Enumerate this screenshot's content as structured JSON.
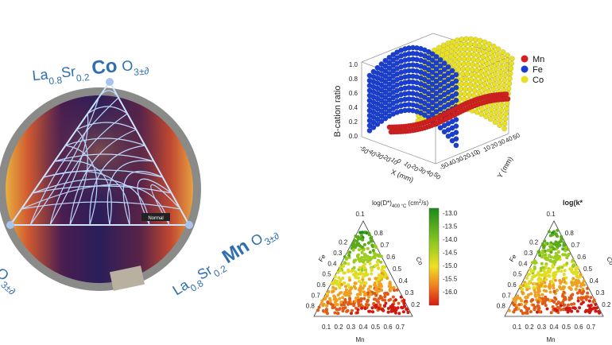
{
  "wafer": {
    "top_label": [
      "La",
      "0.8",
      "Sr",
      "0.2",
      "Co",
      "O",
      "3±∂"
    ],
    "right_label": [
      "La",
      "0.8",
      "Sr",
      "0.2",
      "Mn",
      "O",
      "3±∂"
    ],
    "left_label": [
      "O",
      "3±∂"
    ],
    "inset_label": "Normal"
  },
  "plot3d": {
    "y_label": "B-cation ratio",
    "x_label": "X (mm)",
    "y2_label": "Y (mm)",
    "z_ticks": [
      "1.0",
      "0.8",
      "0.6",
      "0.4",
      "0.2",
      "0.0"
    ],
    "x_ticks": [
      "-50",
      "-40",
      "-30",
      "-20",
      "-10",
      "0",
      "10",
      "20",
      "30",
      "40",
      "50"
    ],
    "y_ticks": [
      "-50",
      "-40",
      "-30",
      "-20",
      "-10",
      "0",
      "10",
      "20",
      "30",
      "40",
      "50"
    ],
    "legend": [
      {
        "name": "Mn",
        "color": "#d42020"
      },
      {
        "name": "Fe",
        "color": "#1a3fd0"
      },
      {
        "name": "Co",
        "color": "#e8e020"
      }
    ]
  },
  "ternary": [
    {
      "title": [
        "log(D*)",
        "400 °C",
        " (cm",
        "2",
        "/s)"
      ],
      "top_tick": "0.1",
      "left_axis": "Fe",
      "right_axis": "Co",
      "bottom_axis": "Mn",
      "left_ticks": [
        "0.2",
        "0.3",
        "0.4",
        "0.5",
        "0.6",
        "0.7",
        "0.8"
      ],
      "right_ticks": [
        "0.8",
        "0.7",
        "0.6",
        "0.5",
        "0.4",
        "0.3",
        "0.2"
      ],
      "bottom_ticks": [
        "0.1",
        "0.2",
        "0.3",
        "0.4",
        "0.5",
        "0.6",
        "0.7"
      ],
      "colorbar_ticks": [
        "-13.0",
        "-13.5",
        "-14.0",
        "-14.5",
        "-15.0",
        "-15.5",
        "-16.0"
      ]
    },
    {
      "title": [
        "log(k*"
      ],
      "top_tick": "0.1",
      "left_axis": "Fe",
      "right_axis": "Co",
      "bottom_axis": "Mn",
      "left_ticks": [
        "0.2",
        "0.3",
        "0.4",
        "0.5",
        "0.6",
        "0.7",
        "0.8"
      ],
      "right_ticks": [
        "0.8",
        "0.7",
        "0.6",
        "0.5",
        "0.4",
        "0.3",
        "0.2"
      ],
      "bottom_ticks": [
        "0.1",
        "0.2",
        "0.3",
        "0.4",
        "0.5",
        "0.6",
        "0.7"
      ]
    }
  ]
}
